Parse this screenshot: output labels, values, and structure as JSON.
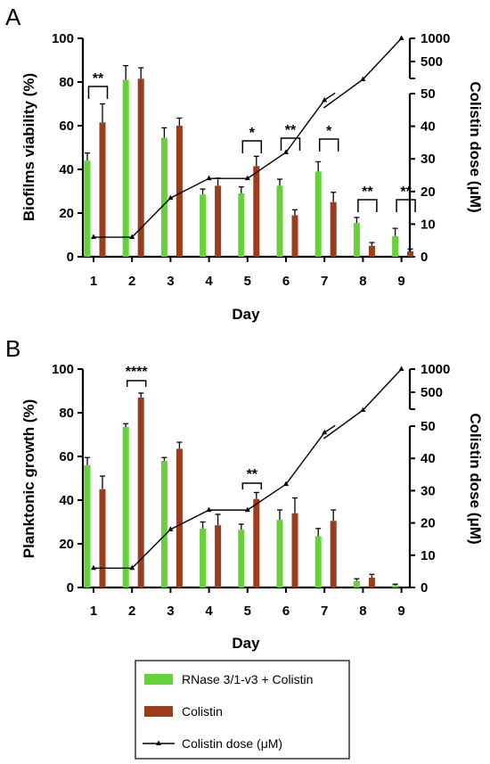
{
  "chart_data": [
    {
      "panel": "A",
      "type": "bar",
      "xlabel": "Day",
      "ylabel": "Biofilms viability (%)",
      "y2label": "Colistin dose (μM)",
      "categories": [
        "1",
        "2",
        "3",
        "4",
        "5",
        "6",
        "7",
        "8",
        "9"
      ],
      "ylim": [
        0,
        100
      ],
      "yticks": [
        "0",
        "20",
        "40",
        "60",
        "80",
        "100"
      ],
      "y2lim_lower": [
        0,
        50
      ],
      "y2ticks_lower": [
        "0",
        "10",
        "20",
        "30",
        "40",
        "50"
      ],
      "y2ticks_upper": [
        "500",
        "1000"
      ],
      "series": [
        {
          "name": "RNase 3/1-v3 + Colistin",
          "color": "#66d23a",
          "values": [
            44,
            81,
            54.5,
            28.5,
            29,
            32.5,
            39,
            15.5,
            9.5
          ],
          "errors": [
            3.5,
            6.5,
            4.5,
            2.5,
            3,
            3,
            4.5,
            2.5,
            3.5
          ]
        },
        {
          "name": "Colistin",
          "color": "#9b3c1c",
          "values": [
            61.5,
            81.5,
            60,
            32.5,
            41.5,
            19,
            25,
            5,
            2.5
          ],
          "errors": [
            8.5,
            5,
            3.5,
            3.5,
            4.5,
            2.5,
            4.5,
            1.5,
            1
          ]
        }
      ],
      "dose": {
        "name": "Colistin dose (μM)",
        "values": [
          6,
          6,
          18,
          24,
          24,
          32,
          48,
          500,
          1000
        ]
      },
      "significance": [
        {
          "day": "1",
          "label": "**"
        },
        {
          "day": "5",
          "label": "*"
        },
        {
          "day": "6",
          "label": "**"
        },
        {
          "day": "7",
          "label": "*"
        },
        {
          "day": "8",
          "label": "**"
        },
        {
          "day": "9",
          "label": "**"
        }
      ]
    },
    {
      "panel": "B",
      "type": "bar",
      "xlabel": "Day",
      "ylabel": "Planktonic growth  (%)",
      "y2label": "Colistin dose (μM)",
      "categories": [
        "1",
        "2",
        "3",
        "4",
        "5",
        "6",
        "7",
        "8",
        "9"
      ],
      "ylim": [
        0,
        100
      ],
      "yticks": [
        "0",
        "20",
        "40",
        "60",
        "80",
        "100"
      ],
      "y2lim_lower": [
        0,
        50
      ],
      "y2ticks_lower": [
        "0",
        "10",
        "20",
        "30",
        "40",
        "50"
      ],
      "y2ticks_upper": [
        "500",
        "1000"
      ],
      "series": [
        {
          "name": "RNase 3/1-v3 + Colistin",
          "color": "#66d23a",
          "values": [
            56,
            73.5,
            58,
            27,
            26.5,
            31,
            23.5,
            3,
            1
          ],
          "errors": [
            3.5,
            1.5,
            1.5,
            3,
            2.5,
            4.5,
            3.5,
            1,
            0.5
          ]
        },
        {
          "name": "Colistin",
          "color": "#9b3c1c",
          "values": [
            45,
            87,
            63.5,
            28.5,
            40.5,
            34,
            30.5,
            4.5,
            0
          ],
          "errors": [
            6,
            2,
            3,
            5,
            3,
            7,
            5,
            1.5,
            0
          ]
        }
      ],
      "dose": {
        "name": "Colistin dose (μM)",
        "values": [
          6,
          6,
          18,
          24,
          24,
          32,
          48,
          500,
          1000
        ]
      },
      "significance": [
        {
          "day": "2",
          "label": "****"
        },
        {
          "day": "5",
          "label": "**"
        }
      ]
    }
  ],
  "legend": {
    "items": [
      {
        "label": "RNase 3/1-v3 + Colistin",
        "kind": "bar",
        "color": "#66d23a"
      },
      {
        "label": "Colistin",
        "kind": "bar",
        "color": "#9b3c1c"
      },
      {
        "label": "Colistin dose (μM)",
        "kind": "line-triangle",
        "color": "#000000"
      }
    ]
  }
}
